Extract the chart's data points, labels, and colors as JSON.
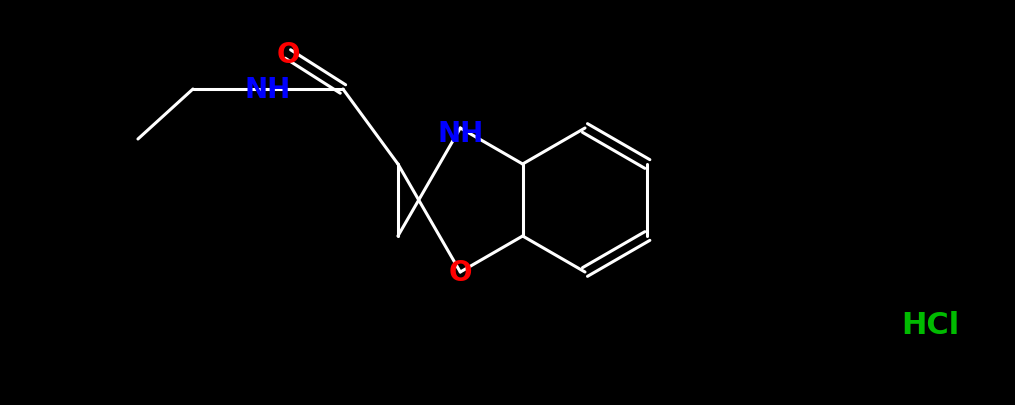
{
  "bg_color": "#000000",
  "white": "#ffffff",
  "blue": "#0000ff",
  "red": "#ff0000",
  "green": "#00bb00",
  "lw": 2.2,
  "font_size": 22,
  "hcl_text": "HCl",
  "nh_text": "NH",
  "n_text": "N",
  "h_text": "H",
  "o_text": "O"
}
